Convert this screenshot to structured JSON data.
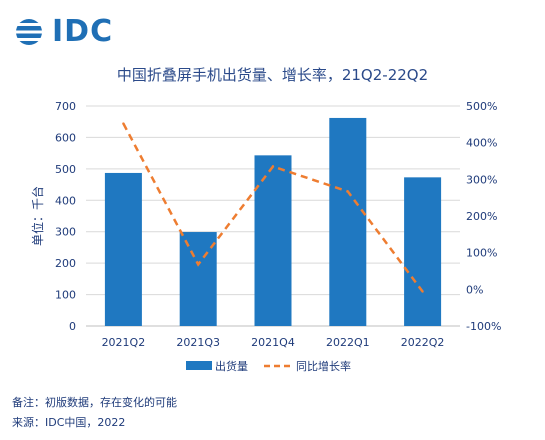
{
  "logo": {
    "text": "IDC"
  },
  "chart_data": {
    "type": "bar",
    "title": "中国折叠屏手机出货量、增长率，21Q2-22Q2",
    "ylabel": "单位：千台",
    "categories": [
      "2021Q2",
      "2021Q3",
      "2021Q4",
      "2022Q1",
      "2022Q2"
    ],
    "ylim": [
      0,
      700
    ],
    "yticks": [
      "0",
      "100",
      "200",
      "300",
      "400",
      "500",
      "600",
      "700"
    ],
    "y2lim": [
      -100,
      500
    ],
    "y2ticks": [
      "-100%",
      "0%",
      "100%",
      "200%",
      "300%",
      "400%",
      "500%"
    ],
    "series": [
      {
        "name": "出货量",
        "type": "bar",
        "axis": "left",
        "color": "#1f78c1",
        "values": [
          487,
          299,
          543,
          662,
          473
        ]
      },
      {
        "name": "同比增长率",
        "type": "line",
        "axis": "right",
        "style": "dashed",
        "color": "#ee7d31",
        "values": [
          452,
          68,
          335,
          267,
          -6
        ]
      }
    ],
    "grid": true,
    "legend": "bottom"
  },
  "notes": {
    "line1": "备注：初版数据，存在变化的可能",
    "line2": "来源：IDC中国，2022"
  }
}
